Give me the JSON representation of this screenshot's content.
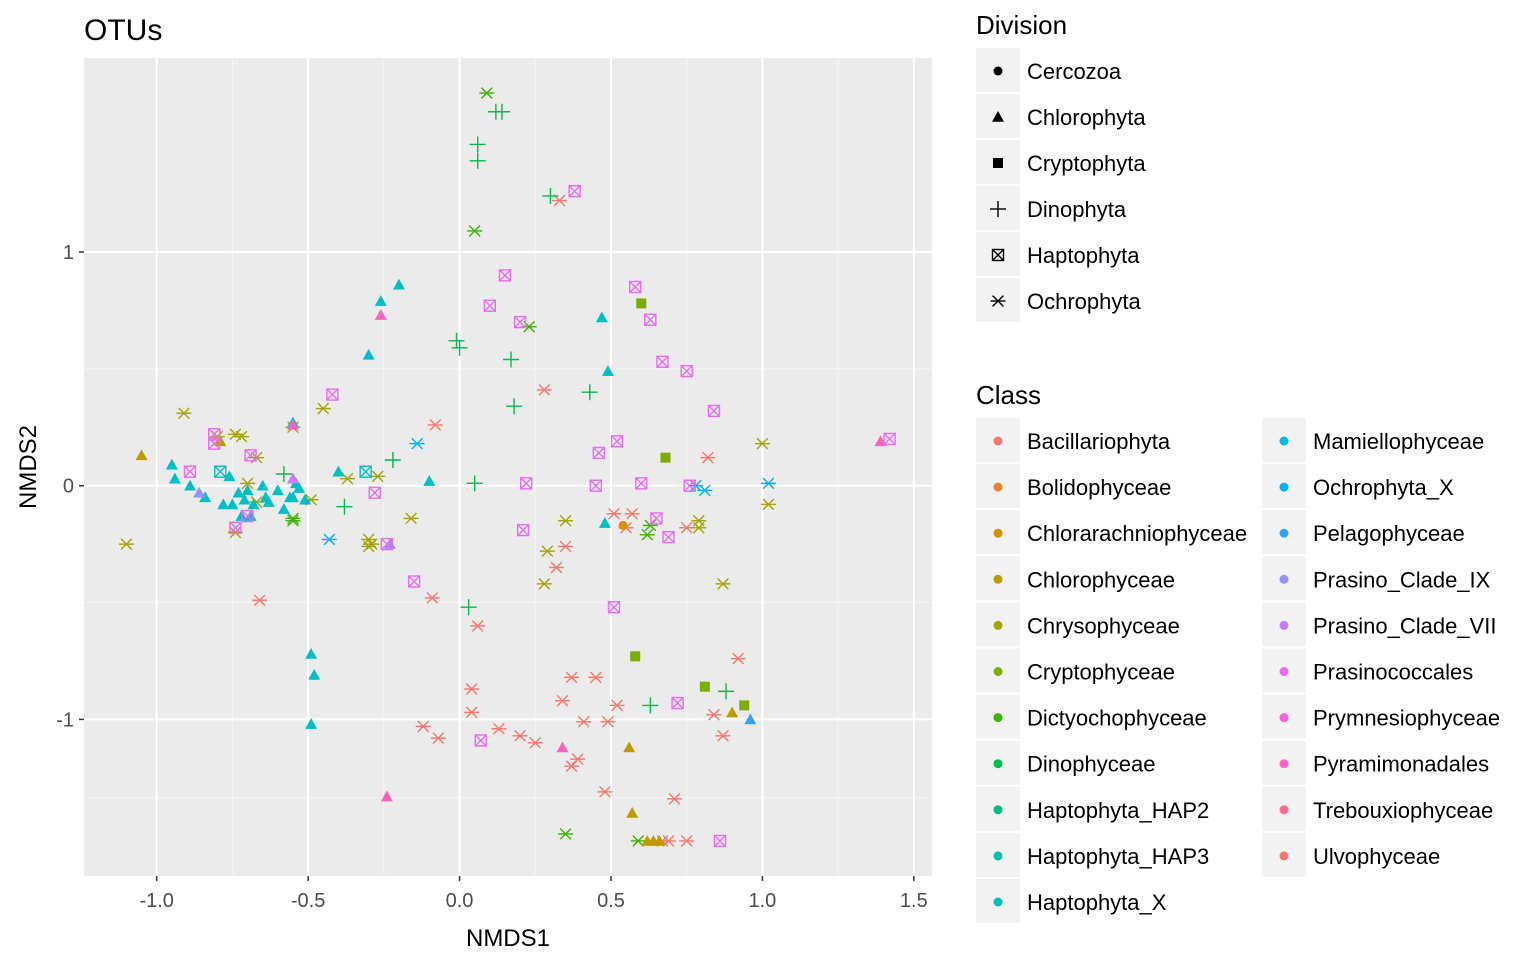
{
  "chart_data": {
    "type": "scatter",
    "title": "OTUs",
    "xlabel": "NMDS1",
    "ylabel": "NMDS2",
    "xlim": [
      -1.24,
      1.56
    ],
    "ylim": [
      -1.67,
      1.83
    ],
    "x_ticks": [
      -1.0,
      -0.5,
      0.0,
      0.5,
      1.0,
      1.5
    ],
    "x_tick_labels": [
      "-1.0",
      "-0.5",
      "0.0",
      "0.5",
      "1.0",
      "1.5"
    ],
    "y_ticks": [
      -1,
      0,
      1
    ],
    "y_tick_labels": [
      "-1",
      "0",
      "1"
    ],
    "grid": true,
    "legend_placement": "right",
    "legends": {
      "division": {
        "title": "Division",
        "items": [
          {
            "label": "Cercozoa",
            "shape": "circle"
          },
          {
            "label": "Chlorophyta",
            "shape": "triangle"
          },
          {
            "label": "Cryptophyta",
            "shape": "square"
          },
          {
            "label": "Dinophyta",
            "shape": "plus"
          },
          {
            "label": "Haptophyta",
            "shape": "boxx"
          },
          {
            "label": "Ochrophyta",
            "shape": "star"
          }
        ]
      },
      "class": {
        "title": "Class",
        "items": [
          {
            "label": "Bacillariophyta",
            "color": "#F8766D"
          },
          {
            "label": "Bolidophyceae",
            "color": "#EA8331"
          },
          {
            "label": "Chlorarachniophyceae",
            "color": "#D89000"
          },
          {
            "label": "Chlorophyceae",
            "color": "#C09B00"
          },
          {
            "label": "Chrysophyceae",
            "color": "#A3A500"
          },
          {
            "label": "Cryptophyceae",
            "color": "#7CAE00"
          },
          {
            "label": "Dictyochophyceae",
            "color": "#39B600"
          },
          {
            "label": "Dinophyceae",
            "color": "#00BB4E"
          },
          {
            "label": "Haptophyta_HAP2",
            "color": "#00BF7D"
          },
          {
            "label": "Haptophyta_HAP3",
            "color": "#00C1A3"
          },
          {
            "label": "Haptophyta_X",
            "color": "#00BFC4"
          },
          {
            "label": "Mamiellophyceae",
            "color": "#00BAE0"
          },
          {
            "label": "Ochrophyta_X",
            "color": "#00B0F6"
          },
          {
            "label": "Pelagophyceae",
            "color": "#35A2FF"
          },
          {
            "label": "Prasino_Clade_IX",
            "color": "#9590FF"
          },
          {
            "label": "Prasino_Clade_VII",
            "color": "#C77CFF"
          },
          {
            "label": "Prasinococcales",
            "color": "#E76BF3"
          },
          {
            "label": "Prymnesiophyceae",
            "color": "#FA62DB"
          },
          {
            "label": "Pyramimonadales",
            "color": "#FF62BC"
          },
          {
            "label": "Trebouxiophyceae",
            "color": "#FF6C91"
          },
          {
            "label": "Ulvophyceae",
            "color": "#F8766D"
          }
        ]
      }
    },
    "series": [
      {
        "shape": "star",
        "color": "#F8766D",
        "points": [
          [
            0.33,
            1.22
          ],
          [
            0.28,
            0.41
          ],
          [
            -0.08,
            0.26
          ],
          [
            0.82,
            0.12
          ],
          [
            0.35,
            -0.26
          ],
          [
            0.32,
            -0.35
          ],
          [
            -0.09,
            -0.48
          ],
          [
            0.06,
            -0.6
          ],
          [
            -0.66,
            -0.49
          ],
          [
            0.92,
            -0.74
          ],
          [
            0.37,
            -0.82
          ],
          [
            0.45,
            -0.82
          ],
          [
            0.04,
            -0.87
          ],
          [
            0.34,
            -0.92
          ],
          [
            0.52,
            -0.94
          ],
          [
            0.04,
            -0.97
          ],
          [
            0.41,
            -1.01
          ],
          [
            0.49,
            -1.01
          ],
          [
            0.84,
            -0.98
          ],
          [
            0.13,
            -1.04
          ],
          [
            0.2,
            -1.07
          ],
          [
            -0.12,
            -1.03
          ],
          [
            0.25,
            -1.1
          ],
          [
            -0.07,
            -1.08
          ],
          [
            0.87,
            -1.07
          ],
          [
            0.39,
            -1.17
          ],
          [
            0.37,
            -1.2
          ],
          [
            0.48,
            -1.31
          ],
          [
            0.71,
            -1.34
          ],
          [
            0.69,
            -1.52
          ],
          [
            0.75,
            -1.52
          ],
          [
            0.67,
            -1.52
          ],
          [
            0.51,
            -0.12
          ],
          [
            0.57,
            -0.12
          ],
          [
            0.75,
            -0.18
          ],
          [
            0.55,
            -0.18
          ]
        ]
      },
      {
        "shape": "star",
        "color": "#A3A500",
        "points": [
          [
            -0.91,
            0.31
          ],
          [
            -1.1,
            -0.25
          ],
          [
            -0.8,
            0.21
          ],
          [
            -0.74,
            0.22
          ],
          [
            -0.72,
            0.21
          ],
          [
            -0.67,
            0.12
          ],
          [
            -0.55,
            0.25
          ],
          [
            -0.7,
            0.01
          ],
          [
            -0.45,
            0.33
          ],
          [
            -0.27,
            0.04
          ],
          [
            -0.37,
            0.03
          ],
          [
            -0.3,
            -0.23
          ],
          [
            -0.29,
            -0.25
          ],
          [
            -0.3,
            -0.26
          ],
          [
            -0.74,
            -0.2
          ],
          [
            -0.67,
            -0.07
          ],
          [
            -0.49,
            -0.06
          ],
          [
            0.35,
            -0.15
          ],
          [
            0.29,
            -0.28
          ],
          [
            0.28,
            -0.42
          ],
          [
            0.79,
            -0.15
          ],
          [
            0.79,
            -0.18
          ],
          [
            1.0,
            0.18
          ],
          [
            1.02,
            -0.08
          ],
          [
            0.87,
            -0.42
          ],
          [
            -0.16,
            -0.14
          ]
        ]
      },
      {
        "shape": "star",
        "color": "#39B600",
        "points": [
          [
            0.09,
            1.68
          ],
          [
            0.05,
            1.09
          ],
          [
            0.23,
            0.68
          ],
          [
            -0.55,
            -0.15
          ],
          [
            -0.55,
            -0.14
          ],
          [
            0.62,
            -0.21
          ],
          [
            0.63,
            -0.17
          ],
          [
            0.35,
            -1.49
          ],
          [
            0.59,
            -1.52
          ]
        ]
      },
      {
        "shape": "plus",
        "color": "#00BB4E",
        "points": [
          [
            0.12,
            1.6
          ],
          [
            0.14,
            1.6
          ],
          [
            0.06,
            1.46
          ],
          [
            0.06,
            1.39
          ],
          [
            0.3,
            1.24
          ],
          [
            -0.01,
            0.62
          ],
          [
            0.0,
            0.59
          ],
          [
            0.17,
            0.54
          ],
          [
            0.18,
            0.34
          ],
          [
            0.43,
            0.4
          ],
          [
            -0.58,
            0.05
          ],
          [
            -0.38,
            -0.09
          ],
          [
            -0.22,
            0.11
          ],
          [
            0.05,
            0.01
          ],
          [
            0.03,
            -0.52
          ],
          [
            0.63,
            -0.94
          ],
          [
            0.88,
            -0.88
          ]
        ]
      },
      {
        "shape": "triangle",
        "color": "#00BFC4",
        "points": [
          [
            -0.2,
            0.86
          ],
          [
            -0.26,
            0.79
          ],
          [
            -0.3,
            0.56
          ],
          [
            0.47,
            0.72
          ],
          [
            0.49,
            0.49
          ],
          [
            -0.55,
            0.27
          ],
          [
            -0.95,
            0.09
          ],
          [
            -0.94,
            0.03
          ],
          [
            -0.89,
            0.0
          ],
          [
            -0.84,
            -0.05
          ],
          [
            -0.78,
            -0.08
          ],
          [
            -0.76,
            0.04
          ],
          [
            -0.73,
            -0.03
          ],
          [
            -0.71,
            -0.06
          ],
          [
            -0.7,
            -0.02
          ],
          [
            -0.69,
            -0.13
          ],
          [
            -0.68,
            -0.08
          ],
          [
            -0.65,
            0.0
          ],
          [
            -0.64,
            -0.05
          ],
          [
            -0.63,
            -0.07
          ],
          [
            -0.6,
            -0.02
          ],
          [
            -0.58,
            -0.1
          ],
          [
            -0.56,
            -0.05
          ],
          [
            -0.55,
            -0.05
          ],
          [
            -0.54,
            0.01
          ],
          [
            -0.53,
            -0.01
          ],
          [
            -0.51,
            -0.06
          ],
          [
            -0.72,
            -0.13
          ],
          [
            -0.75,
            -0.08
          ],
          [
            -0.4,
            0.06
          ],
          [
            -0.1,
            0.02
          ],
          [
            -0.49,
            -0.72
          ],
          [
            -0.48,
            -0.81
          ],
          [
            -0.49,
            -1.02
          ],
          [
            0.48,
            -0.16
          ]
        ]
      },
      {
        "shape": "triangle",
        "color": "#C09B00",
        "points": [
          [
            -1.05,
            0.13
          ],
          [
            -0.79,
            0.19
          ],
          [
            0.56,
            -1.12
          ],
          [
            0.57,
            -1.4
          ],
          [
            0.62,
            -1.52
          ],
          [
            0.64,
            -1.52
          ],
          [
            0.66,
            -1.52
          ],
          [
            0.9,
            -0.97
          ]
        ]
      },
      {
        "shape": "triangle",
        "color": "#FF62BC",
        "points": [
          [
            -0.26,
            0.73
          ],
          [
            -0.55,
            0.26
          ],
          [
            0.34,
            -1.12
          ],
          [
            -0.24,
            -1.33
          ],
          [
            1.39,
            0.19
          ]
        ]
      },
      {
        "shape": "triangle",
        "color": "#35A2FF",
        "points": [
          [
            0.96,
            -1.0
          ]
        ]
      },
      {
        "shape": "triangle",
        "color": "#C77CFF",
        "points": [
          [
            -0.55,
            0.03
          ]
        ]
      },
      {
        "shape": "triangle",
        "color": "#9590FF",
        "points": [
          [
            -0.86,
            -0.03
          ],
          [
            -0.23,
            -0.25
          ]
        ]
      },
      {
        "shape": "square",
        "color": "#7CAE00",
        "points": [
          [
            0.6,
            0.78
          ],
          [
            0.68,
            0.12
          ],
          [
            0.58,
            -0.73
          ],
          [
            0.81,
            -0.86
          ],
          [
            0.94,
            -0.94
          ]
        ]
      },
      {
        "shape": "star",
        "color": "#00B0F6",
        "points": [
          [
            -0.14,
            0.18
          ],
          [
            -0.43,
            -0.23
          ],
          [
            1.02,
            0.01
          ],
          [
            0.81,
            -0.02
          ],
          [
            0.78,
            0.0
          ]
        ]
      },
      {
        "shape": "boxx",
        "color": "#E76BF3",
        "points": [
          [
            0.38,
            1.26
          ],
          [
            0.15,
            0.9
          ],
          [
            0.1,
            0.77
          ],
          [
            0.2,
            0.7
          ],
          [
            0.58,
            0.85
          ],
          [
            0.63,
            0.71
          ],
          [
            0.67,
            0.53
          ],
          [
            0.75,
            0.49
          ],
          [
            0.84,
            0.32
          ],
          [
            -0.42,
            0.39
          ],
          [
            0.52,
            0.19
          ],
          [
            0.46,
            0.14
          ],
          [
            0.22,
            0.01
          ],
          [
            0.45,
            0.0
          ],
          [
            0.6,
            0.01
          ],
          [
            0.65,
            -0.14
          ],
          [
            0.21,
            -0.19
          ],
          [
            0.69,
            -0.22
          ],
          [
            -0.15,
            -0.41
          ],
          [
            0.51,
            -0.52
          ],
          [
            0.72,
            -0.93
          ],
          [
            0.07,
            -1.09
          ],
          [
            0.86,
            -1.52
          ],
          [
            -0.24,
            -0.25
          ],
          [
            -0.28,
            -0.03
          ],
          [
            -0.89,
            0.06
          ],
          [
            -0.81,
            0.22
          ],
          [
            -0.81,
            0.18
          ],
          [
            -0.69,
            0.13
          ],
          [
            -0.74,
            -0.18
          ],
          [
            -0.7,
            -0.13
          ],
          [
            1.42,
            0.2
          ],
          [
            0.76,
            0.0
          ]
        ]
      },
      {
        "shape": "boxx",
        "color": "#00BFC4",
        "points": [
          [
            -0.79,
            0.06
          ],
          [
            -0.31,
            0.06
          ]
        ]
      },
      {
        "shape": "circle",
        "color": "#D89000",
        "points": [
          [
            0.54,
            -0.17
          ]
        ]
      }
    ]
  }
}
